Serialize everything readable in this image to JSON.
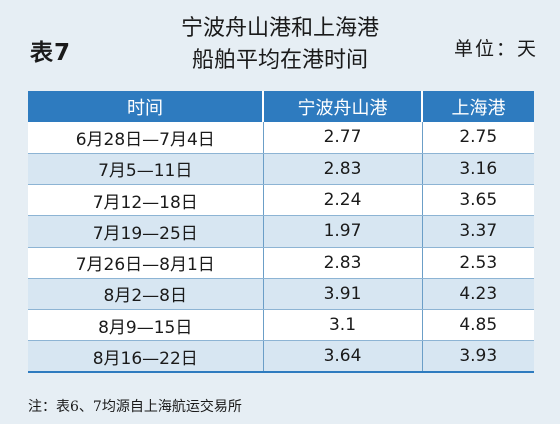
{
  "table_label": "表7",
  "title_line1": "宁波舟山港和上海港",
  "title_line2": "船舶平均在港时间",
  "unit": "单位：天",
  "headers": [
    "时间",
    "宁波舟山港",
    "上海港"
  ],
  "rows": [
    [
      "6月28日—7月4日",
      "2.77",
      "2.75"
    ],
    [
      "7月5—11日",
      "2.83",
      "3.16"
    ],
    [
      "7月12—18日",
      "2.24",
      "3.65"
    ],
    [
      "7月19—25日",
      "1.97",
      "3.37"
    ],
    [
      "7月26日—8月1日",
      "2.83",
      "2.53"
    ],
    [
      "8月2—8日",
      "3.91",
      "4.23"
    ],
    [
      "8月9—15日",
      "3.1",
      "4.85"
    ],
    [
      "8月16—22日",
      "3.64",
      "3.93"
    ]
  ],
  "note": "注：表6、7均源自上海航运交易所",
  "colors": {
    "header_bg": "#2e7bbf",
    "stripe": "#d7e6f2",
    "page_bg": "#e6eef4"
  }
}
